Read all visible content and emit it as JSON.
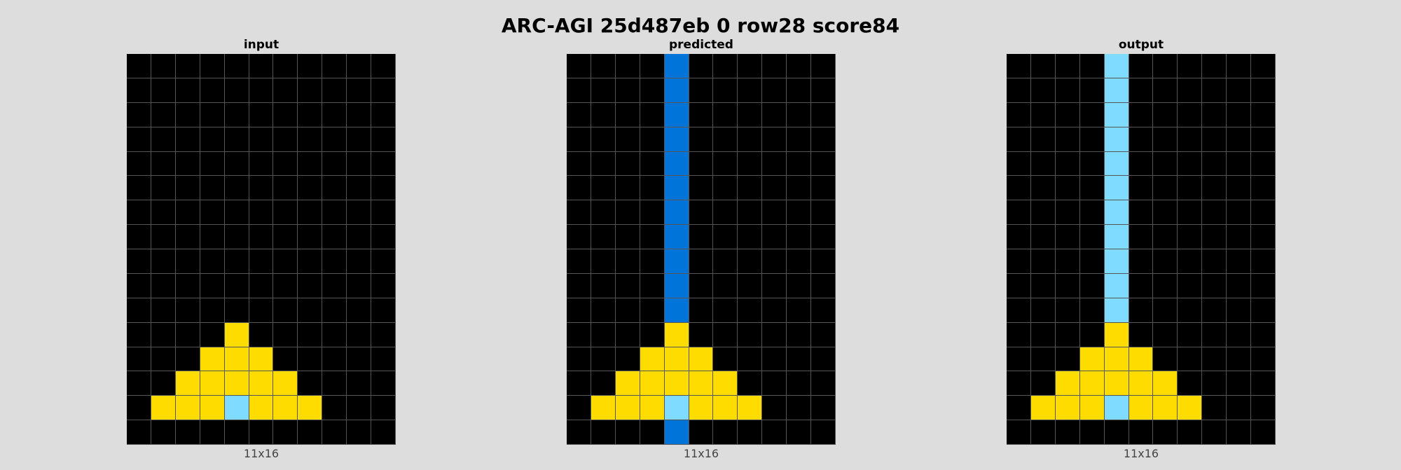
{
  "title": "ARC-AGI 25d487eb 0 row28 score84",
  "palette": {
    "0": "#000000",
    "1": "#0074D9",
    "4": "#FFDC00",
    "8": "#7FDBFF"
  },
  "panels": [
    {
      "title": "input",
      "footer": "11x16",
      "grid": [
        [
          0,
          0,
          0,
          0,
          0,
          0,
          0,
          0,
          0,
          0,
          0
        ],
        [
          0,
          0,
          0,
          0,
          0,
          0,
          0,
          0,
          0,
          0,
          0
        ],
        [
          0,
          0,
          0,
          0,
          0,
          0,
          0,
          0,
          0,
          0,
          0
        ],
        [
          0,
          0,
          0,
          0,
          0,
          0,
          0,
          0,
          0,
          0,
          0
        ],
        [
          0,
          0,
          0,
          0,
          0,
          0,
          0,
          0,
          0,
          0,
          0
        ],
        [
          0,
          0,
          0,
          0,
          0,
          0,
          0,
          0,
          0,
          0,
          0
        ],
        [
          0,
          0,
          0,
          0,
          0,
          0,
          0,
          0,
          0,
          0,
          0
        ],
        [
          0,
          0,
          0,
          0,
          0,
          0,
          0,
          0,
          0,
          0,
          0
        ],
        [
          0,
          0,
          0,
          0,
          0,
          0,
          0,
          0,
          0,
          0,
          0
        ],
        [
          0,
          0,
          0,
          0,
          0,
          0,
          0,
          0,
          0,
          0,
          0
        ],
        [
          0,
          0,
          0,
          0,
          0,
          0,
          0,
          0,
          0,
          0,
          0
        ],
        [
          0,
          0,
          0,
          0,
          4,
          0,
          0,
          0,
          0,
          0,
          0
        ],
        [
          0,
          0,
          0,
          4,
          4,
          4,
          0,
          0,
          0,
          0,
          0
        ],
        [
          0,
          0,
          4,
          4,
          4,
          4,
          4,
          0,
          0,
          0,
          0
        ],
        [
          0,
          4,
          4,
          4,
          8,
          4,
          4,
          4,
          0,
          0,
          0
        ],
        [
          0,
          0,
          0,
          0,
          0,
          0,
          0,
          0,
          0,
          0,
          0
        ]
      ]
    },
    {
      "title": "predicted",
      "footer": "11x16",
      "grid": [
        [
          0,
          0,
          0,
          0,
          1,
          0,
          0,
          0,
          0,
          0,
          0
        ],
        [
          0,
          0,
          0,
          0,
          1,
          0,
          0,
          0,
          0,
          0,
          0
        ],
        [
          0,
          0,
          0,
          0,
          1,
          0,
          0,
          0,
          0,
          0,
          0
        ],
        [
          0,
          0,
          0,
          0,
          1,
          0,
          0,
          0,
          0,
          0,
          0
        ],
        [
          0,
          0,
          0,
          0,
          1,
          0,
          0,
          0,
          0,
          0,
          0
        ],
        [
          0,
          0,
          0,
          0,
          1,
          0,
          0,
          0,
          0,
          0,
          0
        ],
        [
          0,
          0,
          0,
          0,
          1,
          0,
          0,
          0,
          0,
          0,
          0
        ],
        [
          0,
          0,
          0,
          0,
          1,
          0,
          0,
          0,
          0,
          0,
          0
        ],
        [
          0,
          0,
          0,
          0,
          1,
          0,
          0,
          0,
          0,
          0,
          0
        ],
        [
          0,
          0,
          0,
          0,
          1,
          0,
          0,
          0,
          0,
          0,
          0
        ],
        [
          0,
          0,
          0,
          0,
          1,
          0,
          0,
          0,
          0,
          0,
          0
        ],
        [
          0,
          0,
          0,
          0,
          4,
          0,
          0,
          0,
          0,
          0,
          0
        ],
        [
          0,
          0,
          0,
          4,
          4,
          4,
          0,
          0,
          0,
          0,
          0
        ],
        [
          0,
          0,
          4,
          4,
          4,
          4,
          4,
          0,
          0,
          0,
          0
        ],
        [
          0,
          4,
          4,
          4,
          8,
          4,
          4,
          4,
          0,
          0,
          0
        ],
        [
          0,
          0,
          0,
          0,
          1,
          0,
          0,
          0,
          0,
          0,
          0
        ]
      ]
    },
    {
      "title": "output",
      "footer": "11x16",
      "grid": [
        [
          0,
          0,
          0,
          0,
          8,
          0,
          0,
          0,
          0,
          0,
          0
        ],
        [
          0,
          0,
          0,
          0,
          8,
          0,
          0,
          0,
          0,
          0,
          0
        ],
        [
          0,
          0,
          0,
          0,
          8,
          0,
          0,
          0,
          0,
          0,
          0
        ],
        [
          0,
          0,
          0,
          0,
          8,
          0,
          0,
          0,
          0,
          0,
          0
        ],
        [
          0,
          0,
          0,
          0,
          8,
          0,
          0,
          0,
          0,
          0,
          0
        ],
        [
          0,
          0,
          0,
          0,
          8,
          0,
          0,
          0,
          0,
          0,
          0
        ],
        [
          0,
          0,
          0,
          0,
          8,
          0,
          0,
          0,
          0,
          0,
          0
        ],
        [
          0,
          0,
          0,
          0,
          8,
          0,
          0,
          0,
          0,
          0,
          0
        ],
        [
          0,
          0,
          0,
          0,
          8,
          0,
          0,
          0,
          0,
          0,
          0
        ],
        [
          0,
          0,
          0,
          0,
          8,
          0,
          0,
          0,
          0,
          0,
          0
        ],
        [
          0,
          0,
          0,
          0,
          8,
          0,
          0,
          0,
          0,
          0,
          0
        ],
        [
          0,
          0,
          0,
          0,
          4,
          0,
          0,
          0,
          0,
          0,
          0
        ],
        [
          0,
          0,
          0,
          4,
          4,
          4,
          0,
          0,
          0,
          0,
          0
        ],
        [
          0,
          0,
          4,
          4,
          4,
          4,
          4,
          0,
          0,
          0,
          0
        ],
        [
          0,
          4,
          4,
          4,
          8,
          4,
          4,
          4,
          0,
          0,
          0
        ],
        [
          0,
          0,
          0,
          0,
          0,
          0,
          0,
          0,
          0,
          0,
          0
        ]
      ]
    }
  ]
}
